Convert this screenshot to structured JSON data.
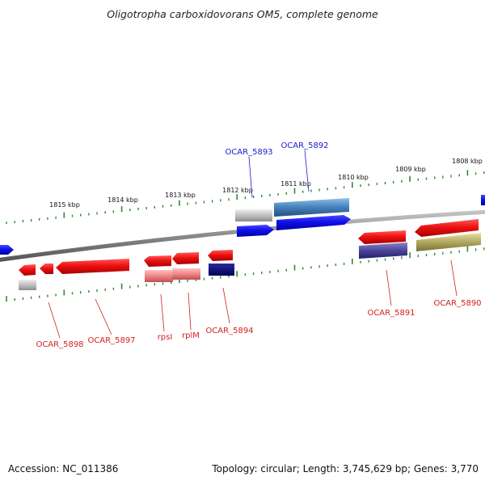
{
  "title": "Oligotropha carboxidovorans OM5, complete genome",
  "footer": {
    "accession": "Accession: NC_011386",
    "topology": "Topology: circular; Length: 3,745,629 bp; Genes: 3,770"
  },
  "colors": {
    "backbone": "#8a8a8a",
    "tick": "#2e8b2e",
    "label_top": "#1a1acc",
    "label_bottom": "#d42020",
    "gene_red": "#ee1111",
    "gene_blue": "#1010ee"
  },
  "ruler_ticks": [
    {
      "label": "1815 kbp"
    },
    {
      "label": "1814 kbp"
    },
    {
      "label": "1813 kbp"
    },
    {
      "label": "1812 kbp"
    },
    {
      "label": "1811 kbp"
    },
    {
      "label": "1810 kbp"
    },
    {
      "label": "1809 kbp"
    },
    {
      "label": "1808 kbp"
    }
  ],
  "gene_labels_top": [
    "OCAR_5893",
    "OCAR_5892"
  ],
  "gene_labels_bottom": [
    "OCAR_5898",
    "OCAR_5897",
    "rpsI",
    "rplM",
    "OCAR_5894",
    "OCAR_5891",
    "OCAR_5890"
  ]
}
